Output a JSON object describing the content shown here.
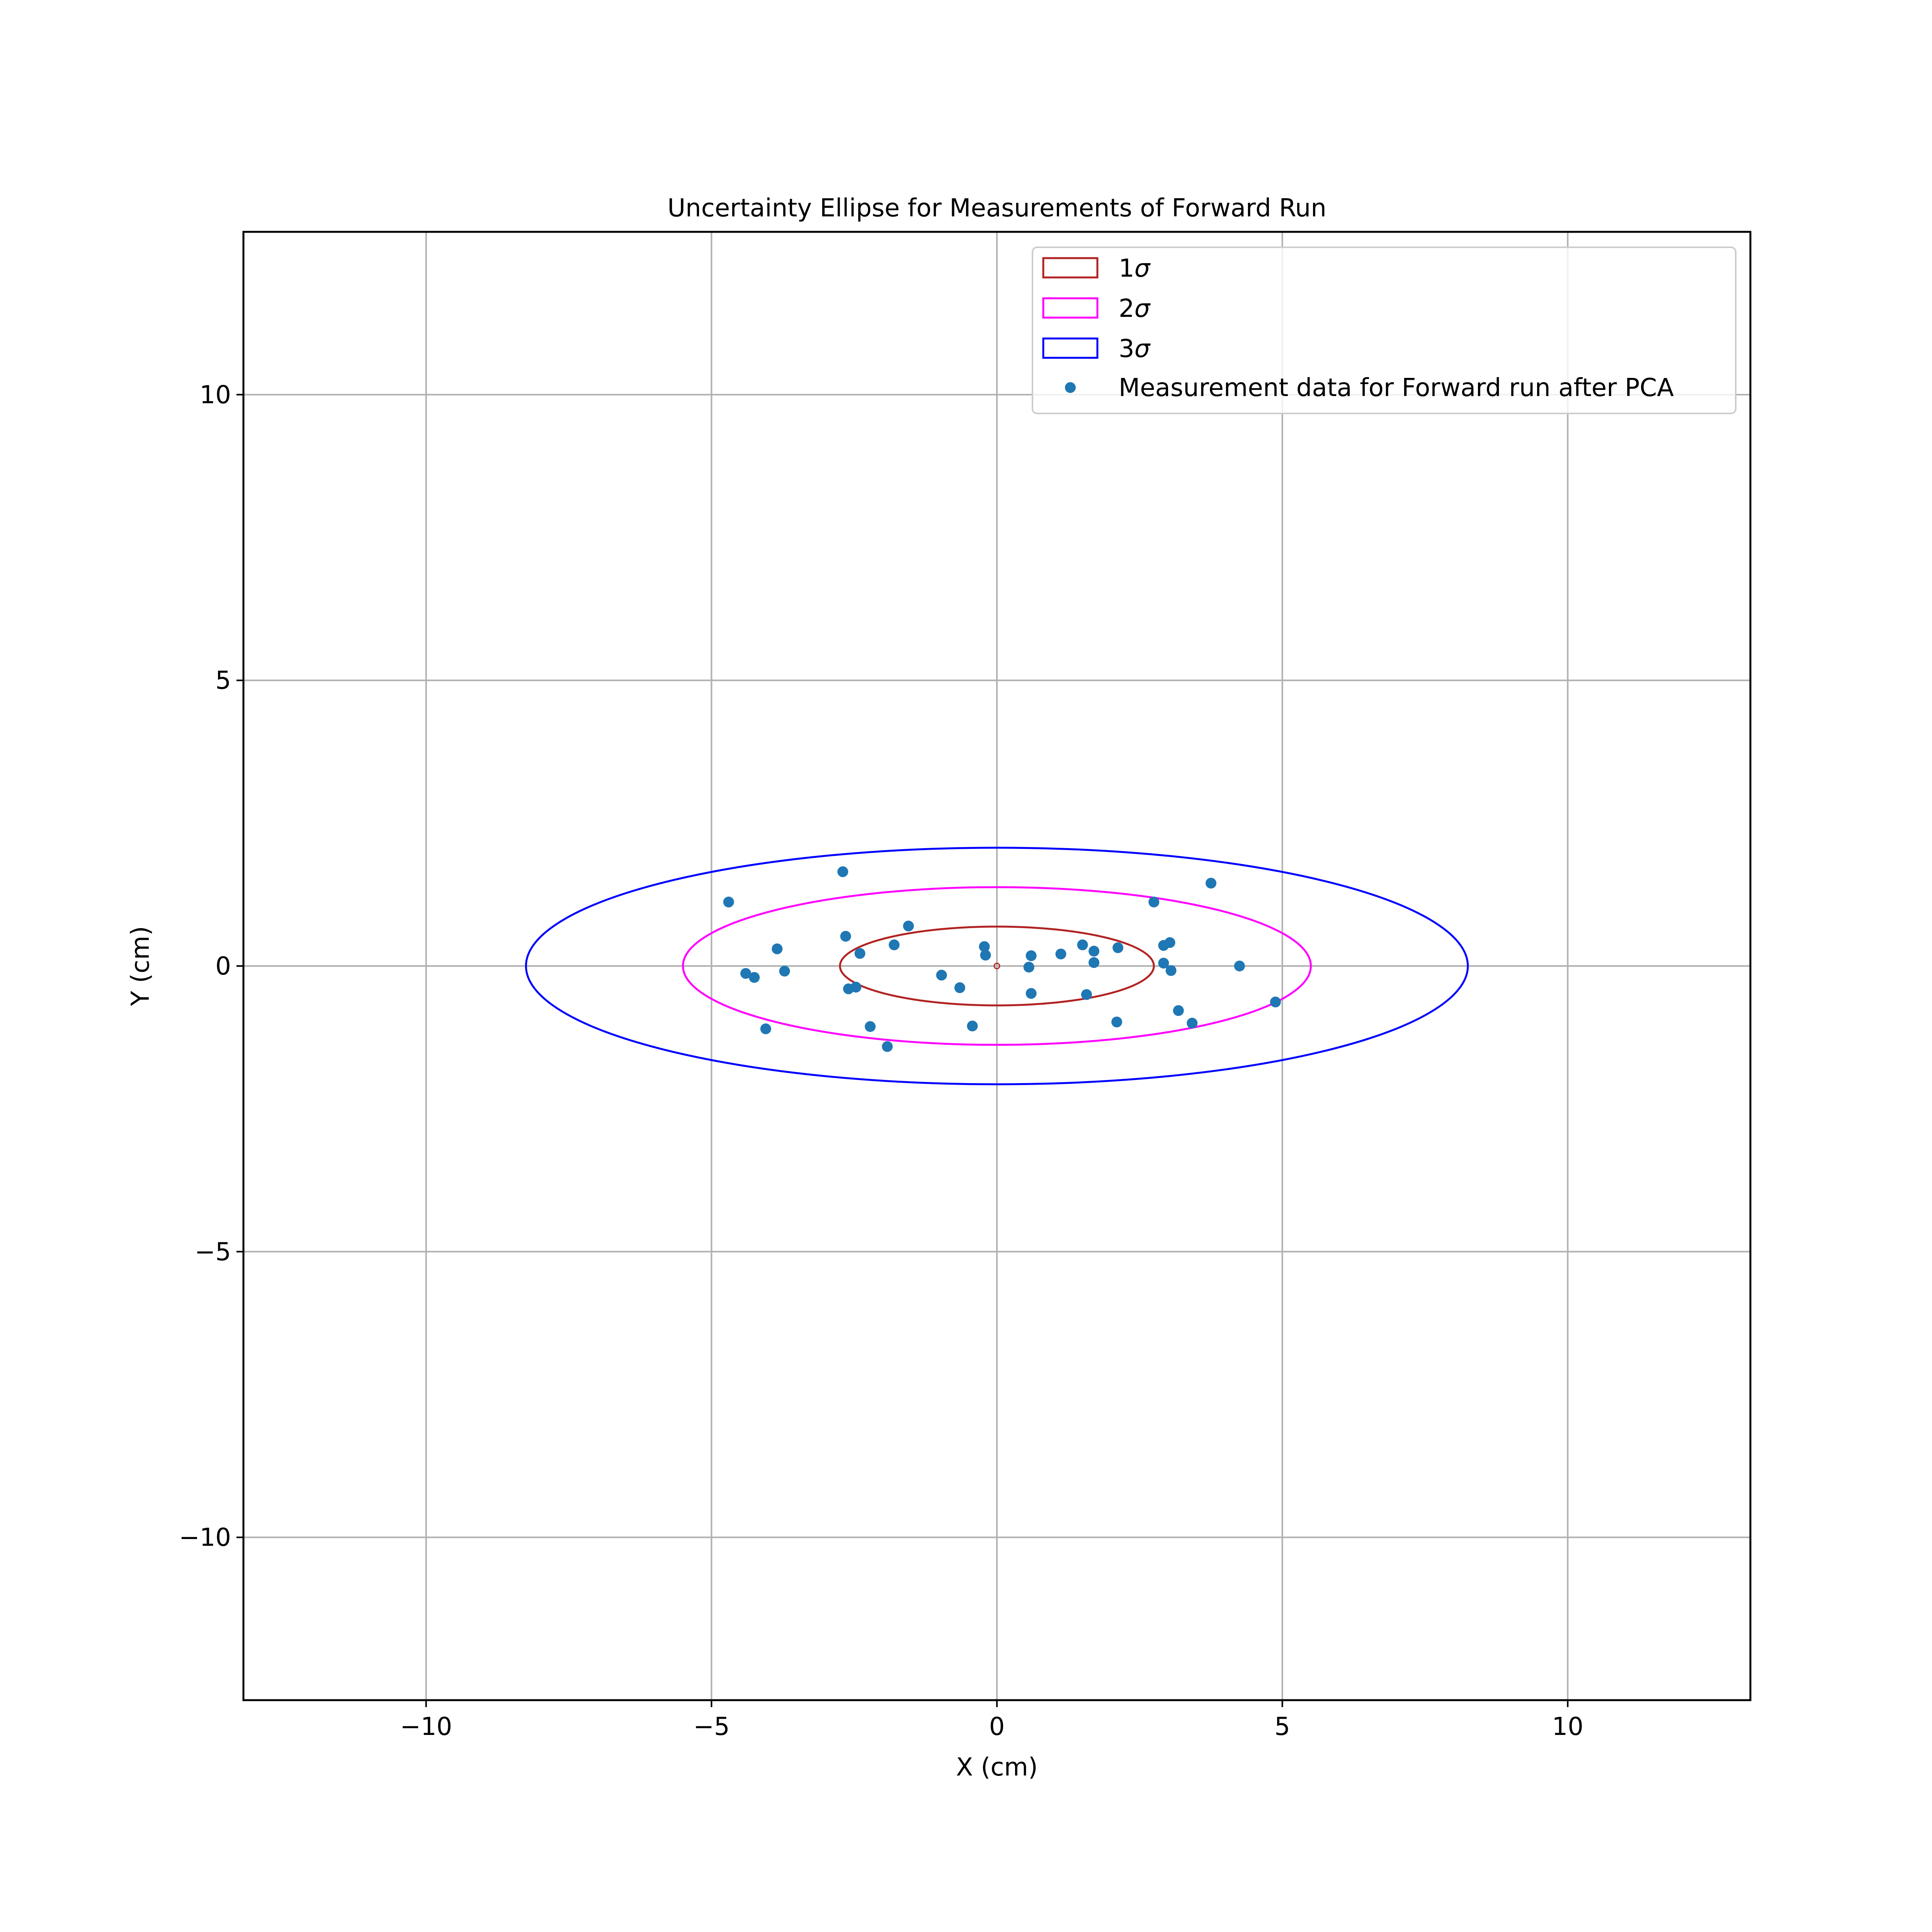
{
  "chart_data": {
    "type": "scatter",
    "title": "Uncertainty Ellipse for Measurements of Forward Run",
    "xlabel": "X (cm)",
    "ylabel": "Y (cm)",
    "xlim": [
      -13.2,
      13.2
    ],
    "ylim": [
      -12.85,
      12.85
    ],
    "grid": true,
    "legend_placement": "upper right",
    "x_ticks": [
      {
        "value": -10,
        "label": "−10"
      },
      {
        "value": -5,
        "label": "−5"
      },
      {
        "value": 0,
        "label": "0"
      },
      {
        "value": 5,
        "label": "5"
      },
      {
        "value": 10,
        "label": "10"
      }
    ],
    "y_ticks": [
      {
        "value": -10,
        "label": "−10"
      },
      {
        "value": -5,
        "label": "−5"
      },
      {
        "value": 0,
        "label": "0"
      },
      {
        "value": 5,
        "label": "5"
      },
      {
        "value": 10,
        "label": "10"
      }
    ],
    "center": [
      0,
      0
    ],
    "ellipses": [
      {
        "name": "1σ",
        "legend_number": "1",
        "legend_sigma": "σ",
        "semi_x": 2.75,
        "semi_y": 0.69,
        "color": "#b22222"
      },
      {
        "name": "2σ",
        "legend_number": "2",
        "legend_sigma": "σ",
        "semi_x": 5.5,
        "semi_y": 1.38,
        "color": "#ff00ff"
      },
      {
        "name": "3σ",
        "legend_number": "3",
        "legend_sigma": "σ",
        "semi_x": 8.25,
        "semi_y": 2.07,
        "color": "#0000ff"
      }
    ],
    "scatter_series": {
      "name": "Measurement data for Forward run after PCA",
      "color": "#1f77b4",
      "points": [
        [
          -2.7,
          1.65
        ],
        [
          -4.7,
          1.12
        ],
        [
          -1.55,
          0.7
        ],
        [
          -2.65,
          0.52
        ],
        [
          -3.85,
          0.3
        ],
        [
          -1.8,
          0.37
        ],
        [
          -2.4,
          0.22
        ],
        [
          -4.4,
          -0.13
        ],
        [
          -4.25,
          -0.2
        ],
        [
          -3.72,
          -0.09
        ],
        [
          -2.6,
          -0.4
        ],
        [
          -2.47,
          -0.37
        ],
        [
          -4.05,
          -1.1
        ],
        [
          -2.22,
          -1.06
        ],
        [
          -1.92,
          -1.41
        ],
        [
          -0.97,
          -0.16
        ],
        [
          -0.65,
          -0.38
        ],
        [
          -0.43,
          -1.05
        ],
        [
          -0.22,
          0.34
        ],
        [
          -0.2,
          0.19
        ],
        [
          0.6,
          0.18
        ],
        [
          0.56,
          -0.02
        ],
        [
          0.6,
          -0.48
        ],
        [
          1.12,
          0.21
        ],
        [
          1.5,
          0.37
        ],
        [
          1.7,
          0.26
        ],
        [
          1.7,
          0.06
        ],
        [
          1.57,
          -0.5
        ],
        [
          2.12,
          0.32
        ],
        [
          2.1,
          -0.98
        ],
        [
          2.75,
          1.12
        ],
        [
          2.92,
          0.36
        ],
        [
          3.03,
          0.41
        ],
        [
          2.92,
          0.05
        ],
        [
          3.05,
          -0.08
        ],
        [
          3.18,
          -0.78
        ],
        [
          3.42,
          -1.0
        ],
        [
          3.75,
          1.45
        ],
        [
          4.25,
          0.0
        ],
        [
          4.88,
          -0.63
        ]
      ]
    }
  }
}
